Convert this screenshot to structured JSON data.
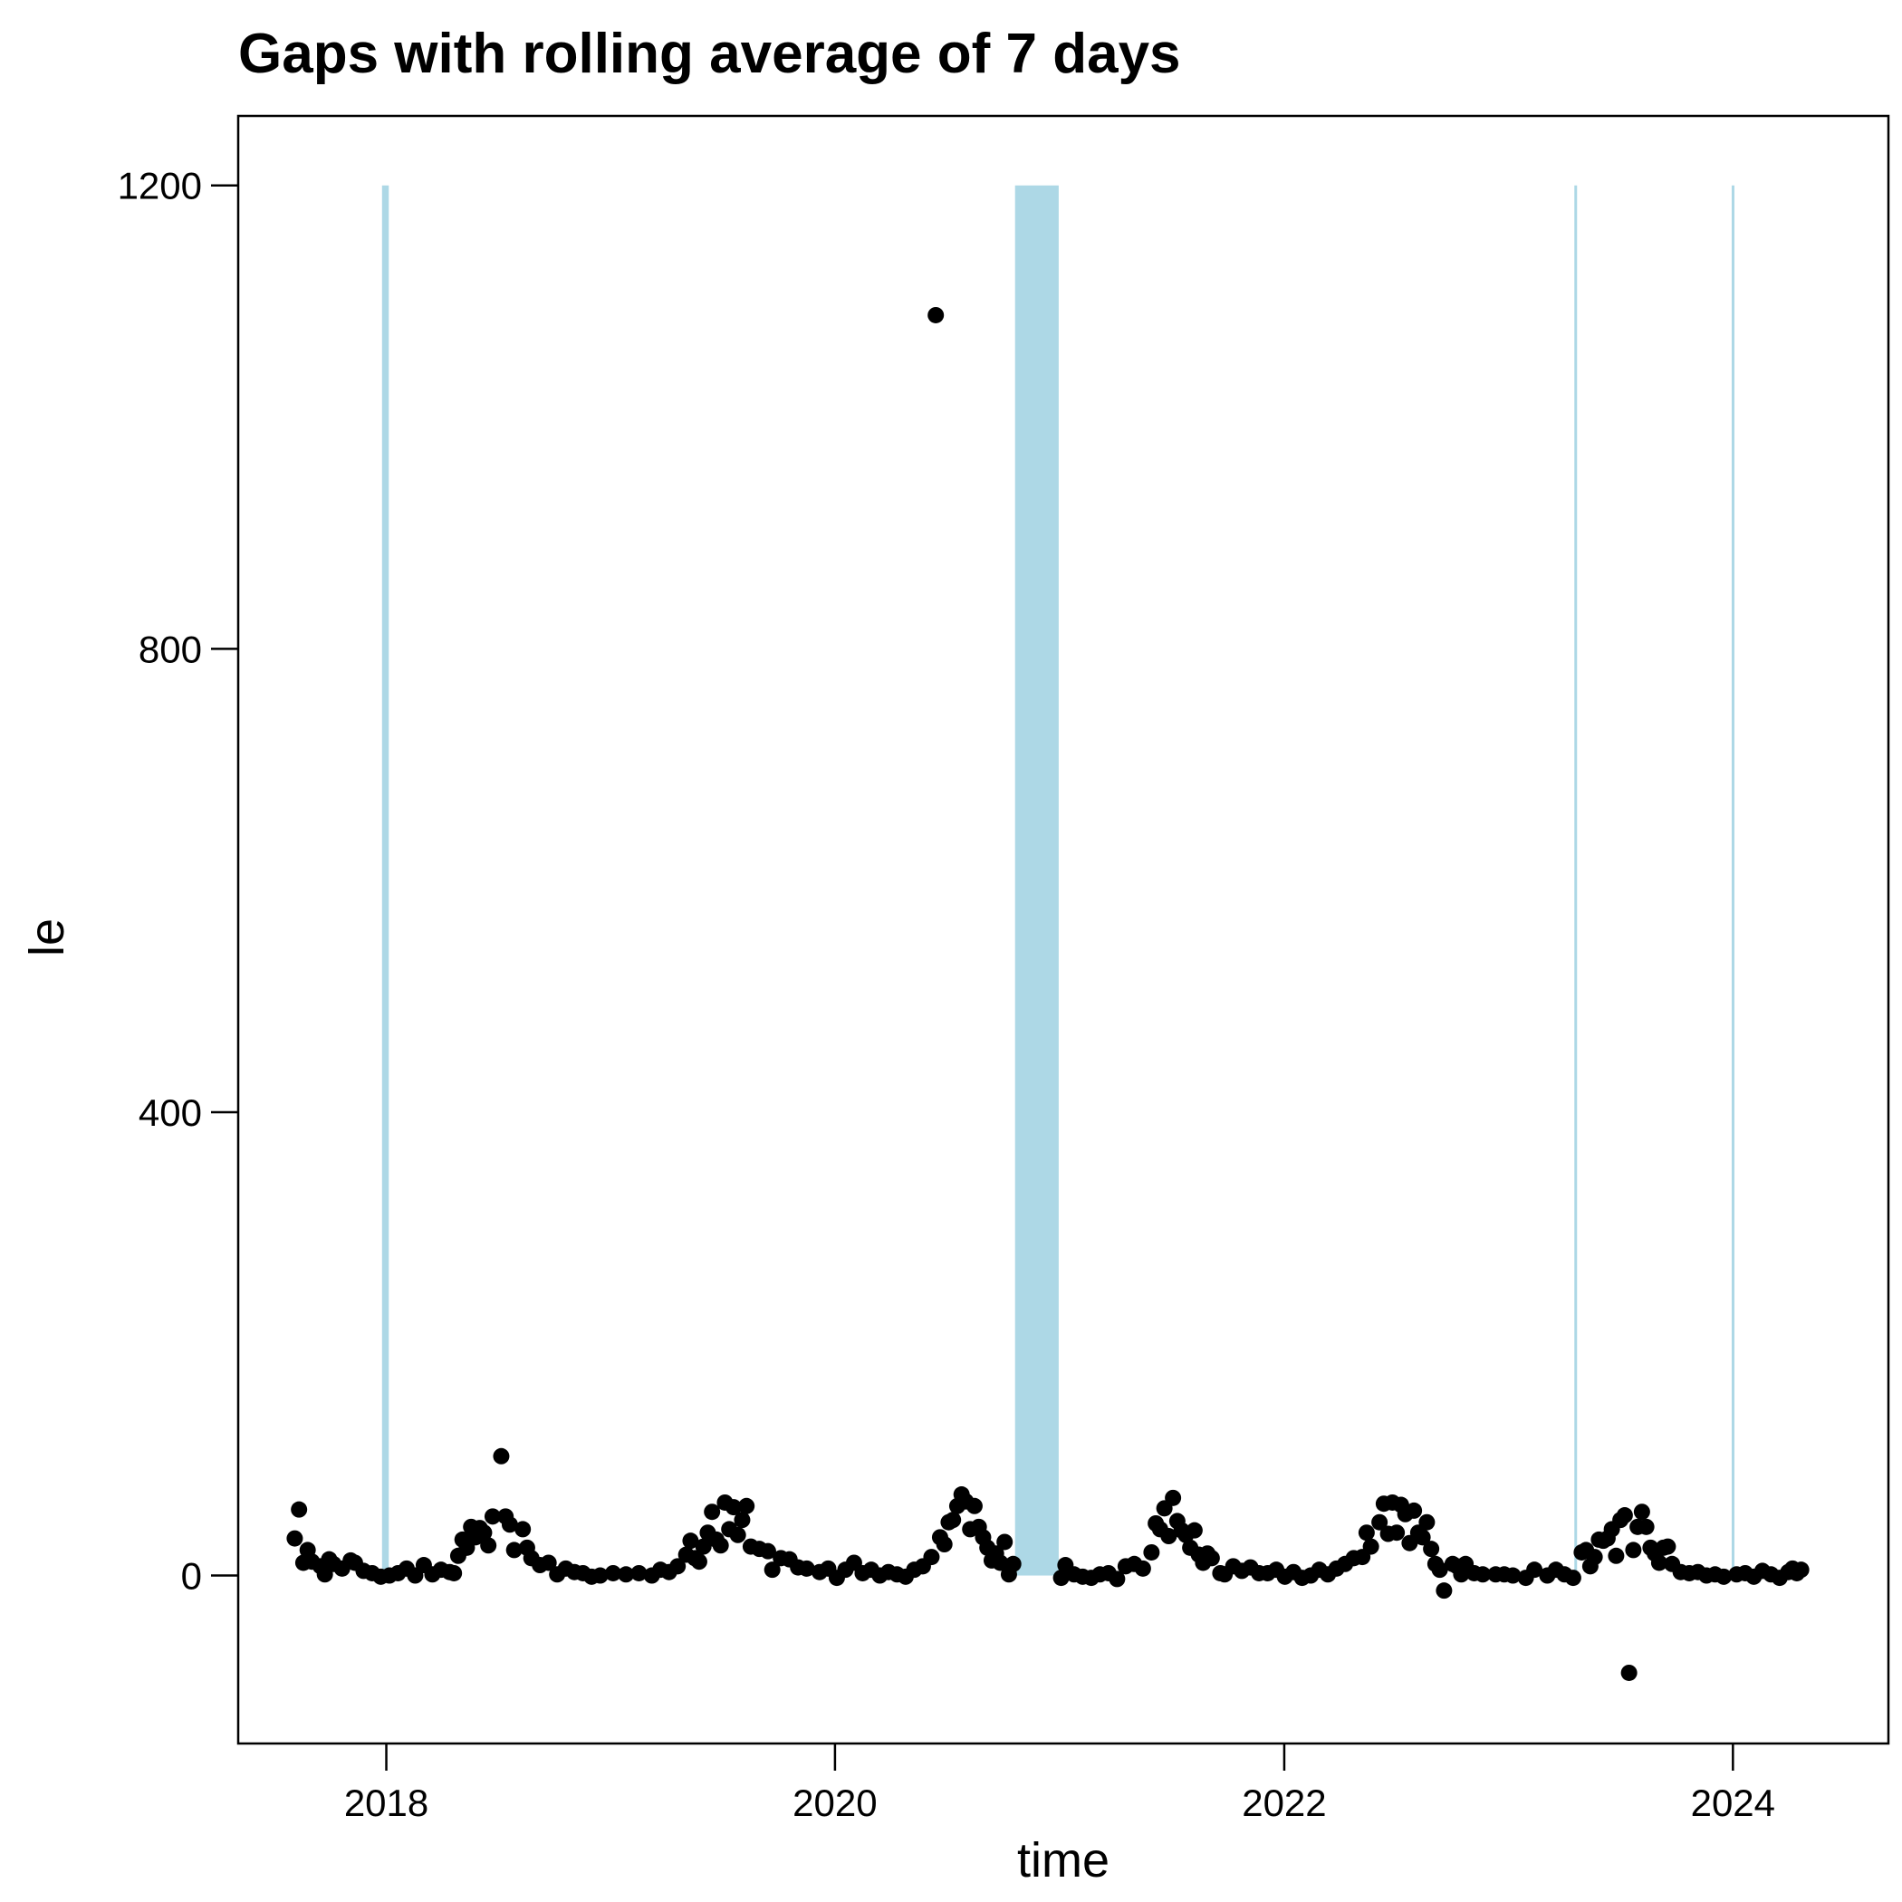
{
  "chart_data": {
    "type": "scatter",
    "title": "Gaps with rolling average of 7 days",
    "xlabel": "time",
    "ylabel": "le",
    "xlim": [
      "2017-05-05",
      "2024-09-10"
    ],
    "ylim": [
      -145,
      1260
    ],
    "x_ticks": [
      "2018",
      "2020",
      "2022",
      "2024"
    ],
    "x_tick_dates": [
      "2018-01-01",
      "2020-01-01",
      "2022-01-01",
      "2024-01-01"
    ],
    "y_ticks": [
      0,
      400,
      800,
      1200
    ],
    "grid": false,
    "legend": "none",
    "gap_color": "#add8e6",
    "point_color": "#000000",
    "gap_bands": [
      {
        "start": "2017-12-25",
        "end": "2018-01-05"
      },
      {
        "start": "2020-10-20",
        "end": "2020-12-30"
      },
      {
        "start": "2023-04-18",
        "end": "2023-04-22"
      },
      {
        "start": "2023-12-30",
        "end": "2024-01-03"
      }
    ],
    "gap_band_top": 1200,
    "series": [
      {
        "points": [
          [
            "2017-08-05",
            32
          ],
          [
            "2017-08-12",
            57
          ],
          [
            "2017-08-19",
            11
          ],
          [
            "2017-08-26",
            22
          ],
          [
            "2017-09-02",
            12
          ],
          [
            "2017-09-16",
            8
          ],
          [
            "2017-09-23",
            1
          ],
          [
            "2017-09-30",
            14
          ],
          [
            "2017-10-07",
            10
          ],
          [
            "2017-10-21",
            6
          ],
          [
            "2017-11-04",
            13
          ],
          [
            "2017-11-11",
            11
          ],
          [
            "2017-11-25",
            4
          ],
          [
            "2017-12-09",
            2
          ],
          [
            "2017-12-23",
            -1
          ],
          [
            "2018-01-06",
            0
          ],
          [
            "2018-01-20",
            2
          ],
          [
            "2018-02-03",
            6
          ],
          [
            "2018-02-17",
            0
          ],
          [
            "2018-03-03",
            9
          ],
          [
            "2018-03-17",
            1
          ],
          [
            "2018-03-31",
            5
          ],
          [
            "2018-04-14",
            3
          ],
          [
            "2018-04-21",
            2
          ],
          [
            "2018-04-28",
            17
          ],
          [
            "2018-05-05",
            31
          ],
          [
            "2018-05-12",
            24
          ],
          [
            "2018-05-19",
            42
          ],
          [
            "2018-05-26",
            33
          ],
          [
            "2018-06-02",
            41
          ],
          [
            "2018-06-09",
            37
          ],
          [
            "2018-06-16",
            26
          ],
          [
            "2018-06-23",
            51
          ],
          [
            "2018-07-07",
            103
          ],
          [
            "2018-07-14",
            51
          ],
          [
            "2018-07-21",
            44
          ],
          [
            "2018-07-28",
            22
          ],
          [
            "2018-08-11",
            40
          ],
          [
            "2018-08-18",
            24
          ],
          [
            "2018-08-25",
            15
          ],
          [
            "2018-09-08",
            9
          ],
          [
            "2018-09-22",
            11
          ],
          [
            "2018-10-06",
            1
          ],
          [
            "2018-10-20",
            6
          ],
          [
            "2018-11-03",
            3
          ],
          [
            "2018-11-17",
            2
          ],
          [
            "2018-12-01",
            -1
          ],
          [
            "2018-12-15",
            0
          ],
          [
            "2019-01-05",
            2
          ],
          [
            "2019-01-26",
            1
          ],
          [
            "2019-02-16",
            2
          ],
          [
            "2019-03-09",
            0
          ],
          [
            "2019-03-23",
            5
          ],
          [
            "2019-04-06",
            3
          ],
          [
            "2019-04-20",
            8
          ],
          [
            "2019-05-04",
            18
          ],
          [
            "2019-05-11",
            30
          ],
          [
            "2019-05-18",
            15
          ],
          [
            "2019-05-25",
            12
          ],
          [
            "2019-06-01",
            25
          ],
          [
            "2019-06-08",
            37
          ],
          [
            "2019-06-15",
            55
          ],
          [
            "2019-06-22",
            31
          ],
          [
            "2019-06-29",
            26
          ],
          [
            "2019-07-06",
            63
          ],
          [
            "2019-07-13",
            40
          ],
          [
            "2019-07-20",
            59
          ],
          [
            "2019-07-27",
            35
          ],
          [
            "2019-08-03",
            48
          ],
          [
            "2019-08-10",
            60
          ],
          [
            "2019-08-17",
            25
          ],
          [
            "2019-08-31",
            23
          ],
          [
            "2019-09-14",
            21
          ],
          [
            "2019-09-21",
            5
          ],
          [
            "2019-10-05",
            15
          ],
          [
            "2019-10-19",
            14
          ],
          [
            "2019-11-02",
            7
          ],
          [
            "2019-11-16",
            6
          ],
          [
            "2019-12-07",
            3
          ],
          [
            "2019-12-21",
            6
          ],
          [
            "2020-01-04",
            -2
          ],
          [
            "2020-01-18",
            5
          ],
          [
            "2020-02-01",
            11
          ],
          [
            "2020-02-15",
            2
          ],
          [
            "2020-02-29",
            5
          ],
          [
            "2020-03-14",
            0
          ],
          [
            "2020-03-28",
            3
          ],
          [
            "2020-04-11",
            1
          ],
          [
            "2020-04-25",
            -1
          ],
          [
            "2020-05-09",
            5
          ],
          [
            "2020-05-23",
            8
          ],
          [
            "2020-06-06",
            16
          ],
          [
            "2020-06-13",
            1088
          ],
          [
            "2020-06-20",
            33
          ],
          [
            "2020-06-27",
            27
          ],
          [
            "2020-07-04",
            46
          ],
          [
            "2020-07-11",
            48
          ],
          [
            "2020-07-18",
            60
          ],
          [
            "2020-07-25",
            70
          ],
          [
            "2020-08-01",
            64
          ],
          [
            "2020-08-08",
            40
          ],
          [
            "2020-08-15",
            60
          ],
          [
            "2020-08-22",
            42
          ],
          [
            "2020-08-29",
            33
          ],
          [
            "2020-09-05",
            24
          ],
          [
            "2020-09-12",
            13
          ],
          [
            "2020-09-19",
            19
          ],
          [
            "2020-09-26",
            11
          ],
          [
            "2020-10-03",
            29
          ],
          [
            "2020-10-10",
            1
          ],
          [
            "2020-10-17",
            10
          ],
          [
            "2021-01-03",
            -2
          ],
          [
            "2021-01-10",
            9
          ],
          [
            "2021-01-24",
            1
          ],
          [
            "2021-02-07",
            -1
          ],
          [
            "2021-02-21",
            -2
          ],
          [
            "2021-03-07",
            1
          ],
          [
            "2021-03-21",
            2
          ],
          [
            "2021-04-04",
            -3
          ],
          [
            "2021-04-18",
            8
          ],
          [
            "2021-05-02",
            10
          ],
          [
            "2021-05-16",
            6
          ],
          [
            "2021-05-30",
            20
          ],
          [
            "2021-06-06",
            45
          ],
          [
            "2021-06-13",
            40
          ],
          [
            "2021-06-20",
            58
          ],
          [
            "2021-06-27",
            34
          ],
          [
            "2021-07-04",
            67
          ],
          [
            "2021-07-11",
            47
          ],
          [
            "2021-07-18",
            39
          ],
          [
            "2021-07-25",
            35
          ],
          [
            "2021-08-01",
            24
          ],
          [
            "2021-08-08",
            39
          ],
          [
            "2021-08-15",
            18
          ],
          [
            "2021-08-22",
            11
          ],
          [
            "2021-08-29",
            19
          ],
          [
            "2021-09-05",
            15
          ],
          [
            "2021-09-19",
            2
          ],
          [
            "2021-09-26",
            1
          ],
          [
            "2021-10-10",
            8
          ],
          [
            "2021-10-24",
            4
          ],
          [
            "2021-11-07",
            7
          ],
          [
            "2021-11-21",
            2
          ],
          [
            "2021-12-05",
            2
          ],
          [
            "2021-12-19",
            5
          ],
          [
            "2022-01-02",
            -1
          ],
          [
            "2022-01-16",
            3
          ],
          [
            "2022-01-30",
            -2
          ],
          [
            "2022-02-13",
            0
          ],
          [
            "2022-02-27",
            5
          ],
          [
            "2022-03-13",
            1
          ],
          [
            "2022-03-27",
            6
          ],
          [
            "2022-04-10",
            10
          ],
          [
            "2022-04-24",
            15
          ],
          [
            "2022-05-08",
            16
          ],
          [
            "2022-05-15",
            37
          ],
          [
            "2022-05-22",
            25
          ],
          [
            "2022-06-05",
            46
          ],
          [
            "2022-06-12",
            62
          ],
          [
            "2022-06-19",
            36
          ],
          [
            "2022-06-26",
            63
          ],
          [
            "2022-07-03",
            37
          ],
          [
            "2022-07-10",
            61
          ],
          [
            "2022-07-17",
            53
          ],
          [
            "2022-07-24",
            28
          ],
          [
            "2022-07-31",
            56
          ],
          [
            "2022-08-07",
            37
          ],
          [
            "2022-08-14",
            33
          ],
          [
            "2022-08-21",
            46
          ],
          [
            "2022-08-28",
            23
          ],
          [
            "2022-09-04",
            10
          ],
          [
            "2022-09-11",
            5
          ],
          [
            "2022-09-18",
            -13
          ],
          [
            "2022-10-02",
            10
          ],
          [
            "2022-10-09",
            8
          ],
          [
            "2022-10-16",
            1
          ],
          [
            "2022-10-23",
            10
          ],
          [
            "2022-11-06",
            2
          ],
          [
            "2022-11-20",
            1
          ],
          [
            "2022-12-11",
            1
          ],
          [
            "2022-12-25",
            1
          ],
          [
            "2023-01-08",
            0
          ],
          [
            "2023-01-29",
            -2
          ],
          [
            "2023-02-12",
            5
          ],
          [
            "2023-03-05",
            0
          ],
          [
            "2023-03-19",
            5
          ],
          [
            "2023-04-02",
            1
          ],
          [
            "2023-04-16",
            -2
          ],
          [
            "2023-04-30",
            20
          ],
          [
            "2023-05-07",
            22
          ],
          [
            "2023-05-14",
            8
          ],
          [
            "2023-05-21",
            16
          ],
          [
            "2023-05-28",
            31
          ],
          [
            "2023-06-04",
            30
          ],
          [
            "2023-06-11",
            32
          ],
          [
            "2023-06-18",
            40
          ],
          [
            "2023-06-25",
            17
          ],
          [
            "2023-07-02",
            48
          ],
          [
            "2023-07-09",
            52
          ],
          [
            "2023-07-16",
            -84
          ],
          [
            "2023-07-23",
            22
          ],
          [
            "2023-07-30",
            42
          ],
          [
            "2023-08-06",
            55
          ],
          [
            "2023-08-13",
            42
          ],
          [
            "2023-08-20",
            24
          ],
          [
            "2023-08-27",
            19
          ],
          [
            "2023-09-03",
            11
          ],
          [
            "2023-09-10",
            24
          ],
          [
            "2023-09-17",
            25
          ],
          [
            "2023-09-24",
            10
          ],
          [
            "2023-10-08",
            3
          ],
          [
            "2023-10-22",
            2
          ],
          [
            "2023-11-05",
            3
          ],
          [
            "2023-11-19",
            0
          ],
          [
            "2023-12-03",
            1
          ],
          [
            "2023-12-17",
            -1
          ],
          [
            "2024-01-07",
            1
          ],
          [
            "2024-01-21",
            2
          ],
          [
            "2024-02-04",
            -1
          ],
          [
            "2024-02-18",
            4
          ],
          [
            "2024-03-03",
            1
          ],
          [
            "2024-03-17",
            -2
          ],
          [
            "2024-03-31",
            3
          ],
          [
            "2024-04-07",
            6
          ],
          [
            "2024-04-14",
            2
          ],
          [
            "2024-04-21",
            5
          ]
        ]
      }
    ]
  }
}
